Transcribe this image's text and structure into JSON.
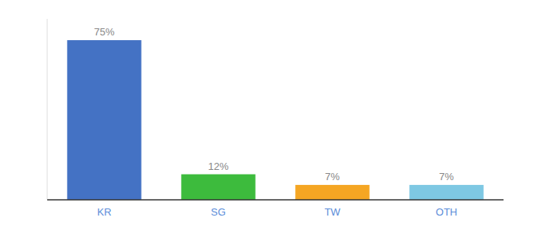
{
  "chart_data": {
    "type": "bar",
    "categories": [
      "KR",
      "SG",
      "TW",
      "OTH"
    ],
    "values": [
      75,
      12,
      7,
      7
    ],
    "value_labels": [
      "75%",
      "12%",
      "7%",
      "7%"
    ],
    "colors": [
      "#4472c4",
      "#3dbb3d",
      "#f5a623",
      "#7ec8e3"
    ],
    "ylim": [
      0,
      85
    ],
    "data_labels": true,
    "tick_labels": "x",
    "grid": false
  }
}
